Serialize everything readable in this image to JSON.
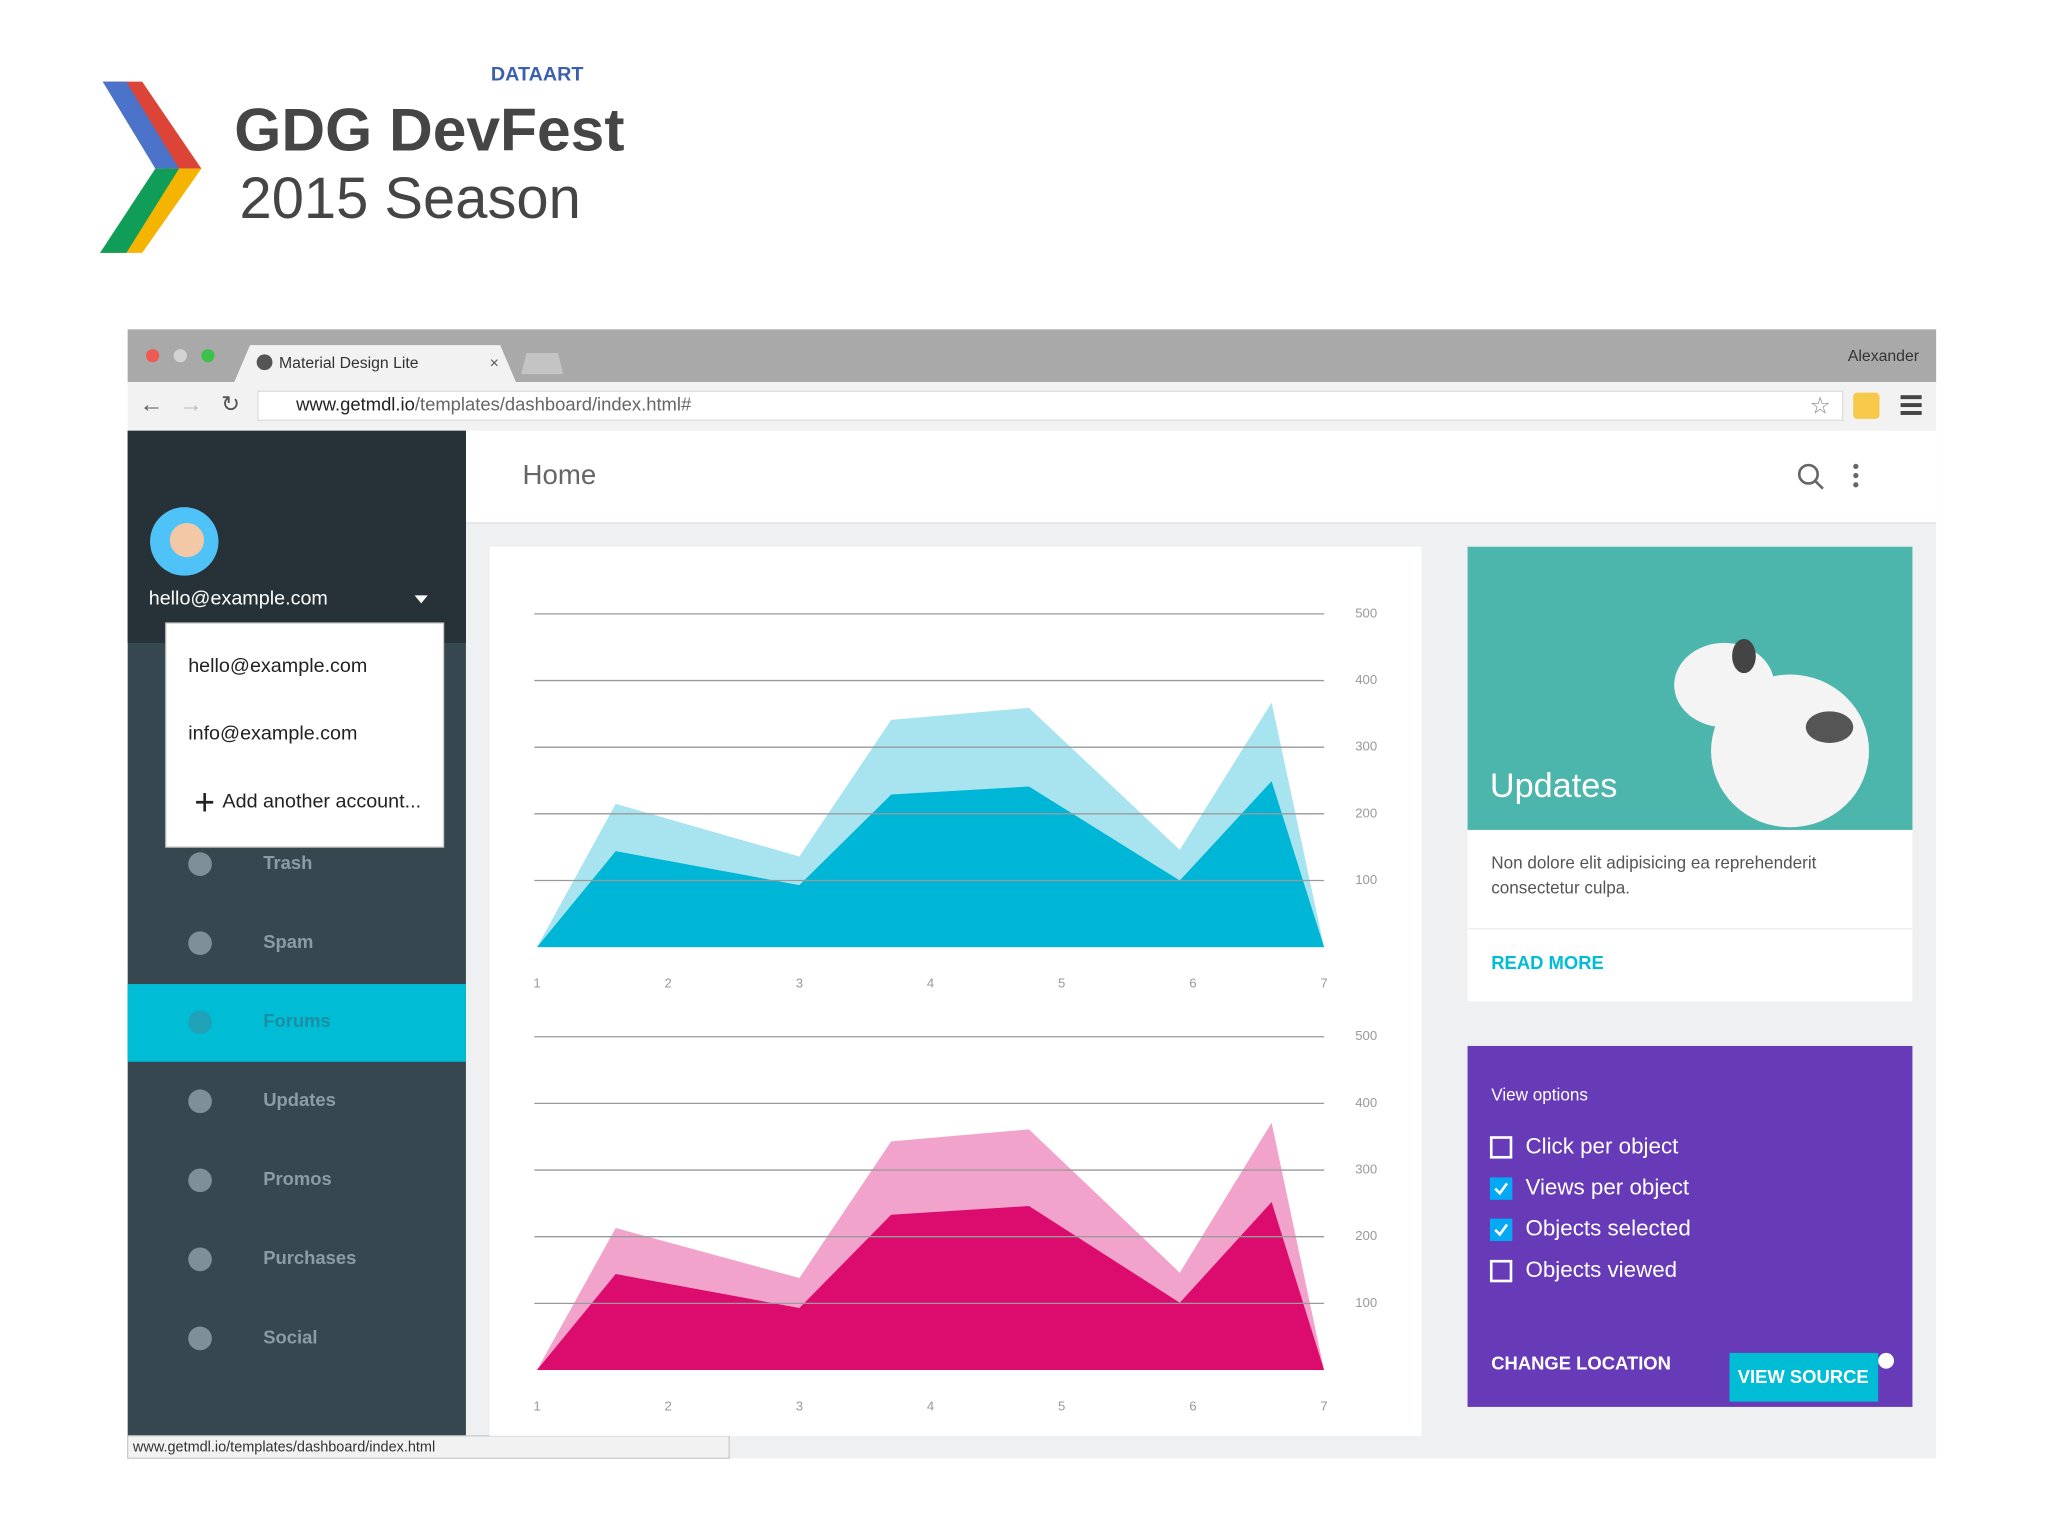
{
  "header": {
    "brand": "DATAART",
    "title": "GDG DevFest",
    "subtitle": "2015 Season"
  },
  "browser": {
    "tab": "Material Design Lite",
    "user": "Alexander",
    "url_host": "www.getmdl.io",
    "url_path": "/templates/dashboard/index.html#",
    "status": "www.getmdl.io/templates/dashboard/index.html"
  },
  "drawer": {
    "account": "hello@example.com",
    "menu": [
      "hello@example.com",
      "info@example.com",
      "Add another account..."
    ],
    "nav": [
      "Trash",
      "Spam",
      "Forums",
      "Updates",
      "Promos",
      "Purchases",
      "Social"
    ]
  },
  "app": {
    "title": "Home"
  },
  "updates_card": {
    "title": "Updates",
    "text_lines": [
      "Non dolore elit adipisicing ea reprehenderit",
      "consectetur culpa."
    ],
    "action": "READ MORE"
  },
  "options_card": {
    "title": "View options",
    "options": [
      {
        "label": "Click per object",
        "checked": false
      },
      {
        "label": "Views per object",
        "checked": true
      },
      {
        "label": "Objects selected",
        "checked": true
      },
      {
        "label": "Objects viewed",
        "checked": false
      }
    ],
    "actions": [
      "CHANGE LOCATION",
      "VIEW SOURCE"
    ]
  },
  "chart_data": [
    {
      "type": "area",
      "x": [
        1,
        1.6,
        3,
        3.7,
        4.75,
        5.9,
        6.6,
        7
      ],
      "xlim": [
        1,
        7
      ],
      "xticks": [
        1,
        2,
        3,
        4,
        5,
        6,
        7
      ],
      "ylim": [
        0,
        500
      ],
      "yticks": [
        100,
        200,
        300,
        400,
        500
      ],
      "grid": true,
      "series": [
        {
          "color": "#a7e4f0",
          "values": [
            0,
            215,
            136,
            341,
            359,
            146,
            367,
            0
          ]
        },
        {
          "color": "#00b6d6",
          "values": [
            0,
            144,
            93,
            229,
            241,
            100,
            249,
            0
          ]
        }
      ]
    },
    {
      "type": "area",
      "x": [
        1,
        1.6,
        3,
        3.7,
        4.75,
        5.9,
        6.6,
        7
      ],
      "xlim": [
        1,
        7
      ],
      "xticks": [
        1,
        2,
        3,
        4,
        5,
        6,
        7
      ],
      "ylim": [
        0,
        500
      ],
      "yticks": [
        100,
        200,
        300,
        400,
        500
      ],
      "grid": true,
      "series": [
        {
          "color": "#f2a3cc",
          "values": [
            0,
            213,
            138,
            343,
            361,
            146,
            371,
            0
          ]
        },
        {
          "color": "#dc0b6e",
          "values": [
            0,
            144,
            93,
            233,
            246,
            101,
            252,
            0
          ]
        }
      ]
    }
  ]
}
